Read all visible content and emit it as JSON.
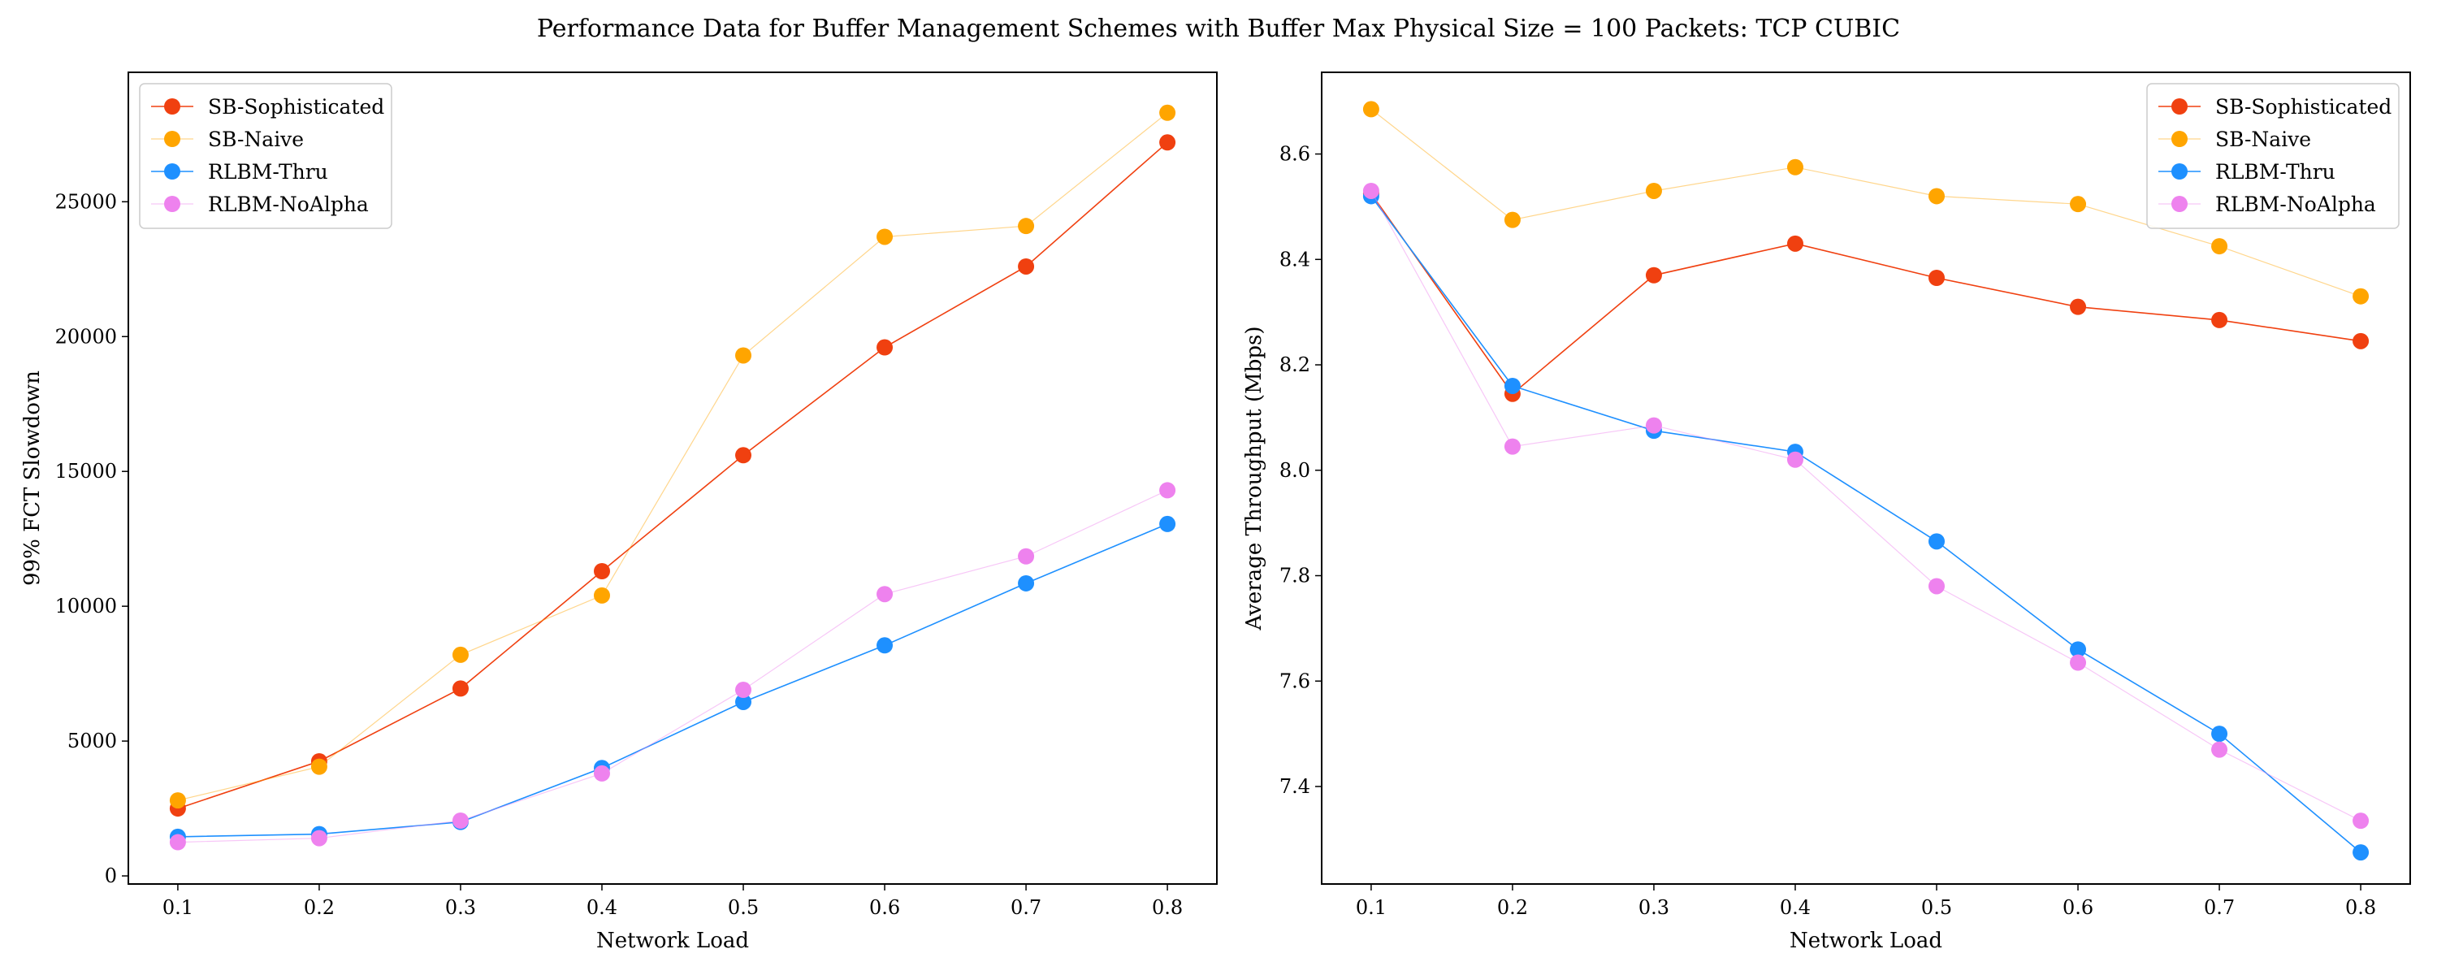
{
  "figure": {
    "title": "Performance Data for Buffer Management Schemes with Buffer Max Physical Size = 100 Packets: TCP CUBIC"
  },
  "colors": {
    "SB-Sophisticated": "#f04010",
    "SB-Naive": "#ffa500",
    "RLBM-Thru": "#1e90ff",
    "RLBM-NoAlpha": "#ee82ee"
  },
  "chart_data": [
    {
      "type": "line",
      "xlabel": "Network Load",
      "ylabel": "99% FCT Slowdown",
      "x": [
        0.1,
        0.2,
        0.3,
        0.4,
        0.5,
        0.6,
        0.7,
        0.8
      ],
      "xticks": [
        "0.1",
        "0.2",
        "0.3",
        "0.4",
        "0.5",
        "0.6",
        "0.7",
        "0.8"
      ],
      "xlim": [
        0.065,
        0.835
      ],
      "ylim": [
        -300,
        29800
      ],
      "yticks": [
        "0",
        "5000",
        "10000",
        "15000",
        "20000",
        "25000"
      ],
      "ytick_values": [
        0,
        5000,
        10000,
        15000,
        20000,
        25000
      ],
      "grid": false,
      "legend": "upper left",
      "series": [
        {
          "name": "SB-Sophisticated",
          "values": [
            2500,
            4250,
            6950,
            11300,
            15600,
            19600,
            22600,
            27200
          ]
        },
        {
          "name": "SB-Naive",
          "values": [
            2800,
            4050,
            8200,
            10400,
            19300,
            23700,
            24100,
            28300
          ]
        },
        {
          "name": "RLBM-Thru",
          "values": [
            1450,
            1550,
            2000,
            4000,
            6450,
            8550,
            10850,
            13050
          ]
        },
        {
          "name": "RLBM-NoAlpha",
          "values": [
            1250,
            1400,
            2050,
            3800,
            6900,
            10450,
            11850,
            14300
          ]
        }
      ]
    },
    {
      "type": "line",
      "xlabel": "Network Load",
      "ylabel": "Average Throughput (Mbps)",
      "x": [
        0.1,
        0.2,
        0.3,
        0.4,
        0.5,
        0.6,
        0.7,
        0.8
      ],
      "xticks": [
        "0.1",
        "0.2",
        "0.3",
        "0.4",
        "0.5",
        "0.6",
        "0.7",
        "0.8"
      ],
      "xlim": [
        0.065,
        0.835
      ],
      "ylim": [
        7.215,
        8.755
      ],
      "yticks": [
        "7.4",
        "7.6",
        "7.8",
        "8.0",
        "8.2",
        "8.4",
        "8.6"
      ],
      "ytick_values": [
        7.4,
        7.6,
        7.8,
        8.0,
        8.2,
        8.4,
        8.6
      ],
      "grid": false,
      "legend": "upper right",
      "series": [
        {
          "name": "SB-Sophisticated",
          "values": [
            8.525,
            8.145,
            8.37,
            8.43,
            8.365,
            8.31,
            8.285,
            8.245
          ]
        },
        {
          "name": "SB-Naive",
          "values": [
            8.685,
            8.475,
            8.53,
            8.575,
            8.52,
            8.505,
            8.425,
            8.33
          ]
        },
        {
          "name": "RLBM-Thru",
          "values": [
            8.52,
            8.16,
            8.075,
            8.035,
            7.865,
            7.66,
            7.5,
            7.275
          ]
        },
        {
          "name": "RLBM-NoAlpha",
          "values": [
            8.53,
            8.045,
            8.085,
            8.02,
            7.78,
            7.635,
            7.47,
            7.335
          ]
        }
      ]
    }
  ]
}
